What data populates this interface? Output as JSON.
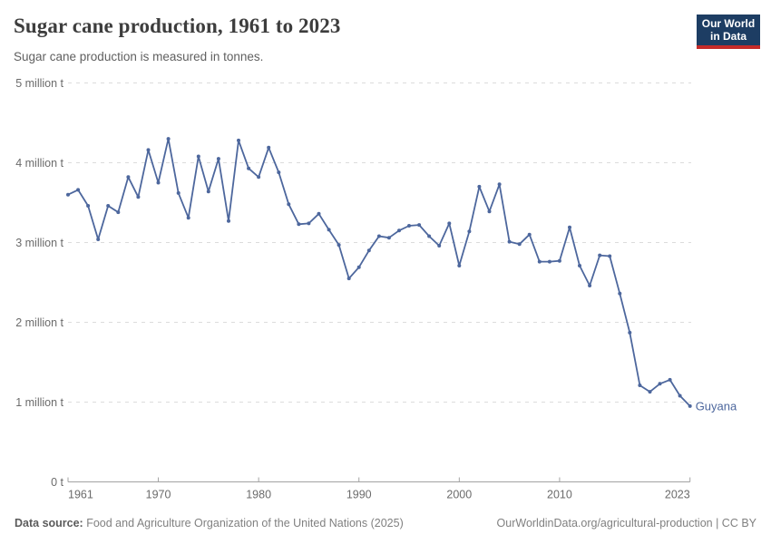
{
  "header": {
    "title": "Sugar cane production, 1961 to 2023",
    "subtitle": "Sugar cane production is measured in tonnes.",
    "logo": {
      "line1": "Our World",
      "line2": "in Data",
      "bg_color": "#1d3d63",
      "accent_color": "#c52b29"
    }
  },
  "chart_data": {
    "type": "line",
    "title": "Sugar cane production, 1961 to 2023",
    "unit": "million tonnes",
    "x_range": [
      1961,
      2023
    ],
    "ylim": [
      0,
      5
    ],
    "grid": "horizontal-dashed",
    "legend_position": "line-end-label",
    "yticks": [
      {
        "value": 0,
        "label": "0 t"
      },
      {
        "value": 1,
        "label": "1 million t"
      },
      {
        "value": 2,
        "label": "2 million t"
      },
      {
        "value": 3,
        "label": "3 million t"
      },
      {
        "value": 4,
        "label": "4 million t"
      },
      {
        "value": 5,
        "label": "5 million t"
      }
    ],
    "xticks": [
      1961,
      1970,
      1980,
      1990,
      2000,
      2010,
      2023
    ],
    "series": [
      {
        "name": "Guyana",
        "color": "#4d679d",
        "x": [
          1961,
          1962,
          1963,
          1964,
          1965,
          1966,
          1967,
          1968,
          1969,
          1970,
          1971,
          1972,
          1973,
          1974,
          1975,
          1976,
          1977,
          1978,
          1979,
          1980,
          1981,
          1982,
          1983,
          1984,
          1985,
          1986,
          1987,
          1988,
          1989,
          1990,
          1991,
          1992,
          1993,
          1994,
          1995,
          1996,
          1997,
          1998,
          1999,
          2000,
          2001,
          2002,
          2003,
          2004,
          2005,
          2006,
          2007,
          2008,
          2009,
          2010,
          2011,
          2012,
          2013,
          2014,
          2015,
          2016,
          2017,
          2018,
          2019,
          2020,
          2021,
          2022,
          2023
        ],
        "values": [
          3.6,
          3.66,
          3.46,
          3.04,
          3.46,
          3.38,
          3.82,
          3.57,
          4.16,
          3.75,
          4.3,
          3.62,
          3.31,
          4.08,
          3.64,
          4.05,
          3.27,
          4.28,
          3.93,
          3.82,
          4.19,
          3.88,
          3.48,
          3.23,
          3.24,
          3.36,
          3.16,
          2.97,
          2.55,
          2.69,
          2.9,
          3.08,
          3.06,
          3.15,
          3.21,
          3.22,
          3.08,
          2.96,
          3.24,
          2.71,
          3.14,
          3.7,
          3.39,
          3.73,
          3.01,
          2.98,
          3.1,
          2.76,
          2.76,
          2.77,
          3.19,
          2.71,
          2.46,
          2.84,
          2.83,
          2.36,
          1.87,
          1.21,
          1.13,
          1.23,
          1.28,
          1.08,
          0.95
        ]
      }
    ]
  },
  "footer": {
    "datasource_label": "Data source:",
    "datasource_value": "Food and Agriculture Organization of the United Nations (2025)",
    "link": "OurWorldinData.org/agricultural-production | CC BY"
  }
}
